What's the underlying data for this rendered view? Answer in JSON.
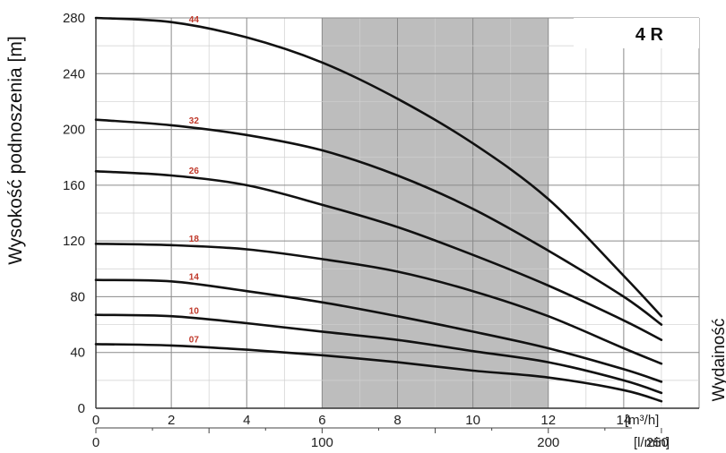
{
  "chart_data": {
    "type": "line",
    "model_label": "4 R",
    "ylabel": "Wysokość podnoszenia [m]",
    "right_label": "Wydainość",
    "x_unit": "[m³/h]",
    "x2_unit": "[l/min]",
    "xlim": [
      0,
      16
    ],
    "ylim": [
      0,
      280
    ],
    "xticks": [
      0,
      2,
      4,
      6,
      8,
      10,
      12,
      14
    ],
    "yticks": [
      0,
      40,
      80,
      120,
      160,
      200,
      240,
      280
    ],
    "x2ticks": [
      0,
      100,
      200,
      250
    ],
    "shaded_range": [
      6,
      12
    ],
    "grid": true,
    "series": [
      {
        "name": "44",
        "x": [
          0,
          2,
          4,
          6,
          8,
          10,
          12,
          14,
          15
        ],
        "y": [
          280,
          277,
          266,
          248,
          222,
          190,
          150,
          95,
          66
        ]
      },
      {
        "name": "32",
        "x": [
          0,
          2,
          4,
          6,
          8,
          10,
          12,
          14,
          15
        ],
        "y": [
          207,
          203,
          196,
          185,
          167,
          143,
          113,
          80,
          60
        ]
      },
      {
        "name": "26",
        "x": [
          0,
          2,
          4,
          6,
          8,
          10,
          12,
          14,
          15
        ],
        "y": [
          170,
          167,
          160,
          146,
          130,
          110,
          88,
          63,
          49
        ]
      },
      {
        "name": "18",
        "x": [
          0,
          2,
          4,
          6,
          8,
          10,
          12,
          14,
          15
        ],
        "y": [
          118,
          117,
          114,
          107,
          98,
          84,
          66,
          43,
          32
        ]
      },
      {
        "name": "14",
        "x": [
          0,
          2,
          4,
          6,
          8,
          10,
          12,
          14,
          15
        ],
        "y": [
          92,
          91,
          84,
          76,
          66,
          55,
          43,
          28,
          19
        ]
      },
      {
        "name": "10",
        "x": [
          0,
          2,
          4,
          6,
          8,
          10,
          12,
          14,
          15
        ],
        "y": [
          67,
          66,
          61,
          55,
          49,
          41,
          33,
          20,
          11
        ]
      },
      {
        "name": "07",
        "x": [
          0,
          2,
          4,
          6,
          8,
          10,
          12,
          14,
          15
        ],
        "y": [
          46,
          45,
          42,
          38,
          33,
          27,
          22,
          13,
          5
        ]
      }
    ]
  }
}
